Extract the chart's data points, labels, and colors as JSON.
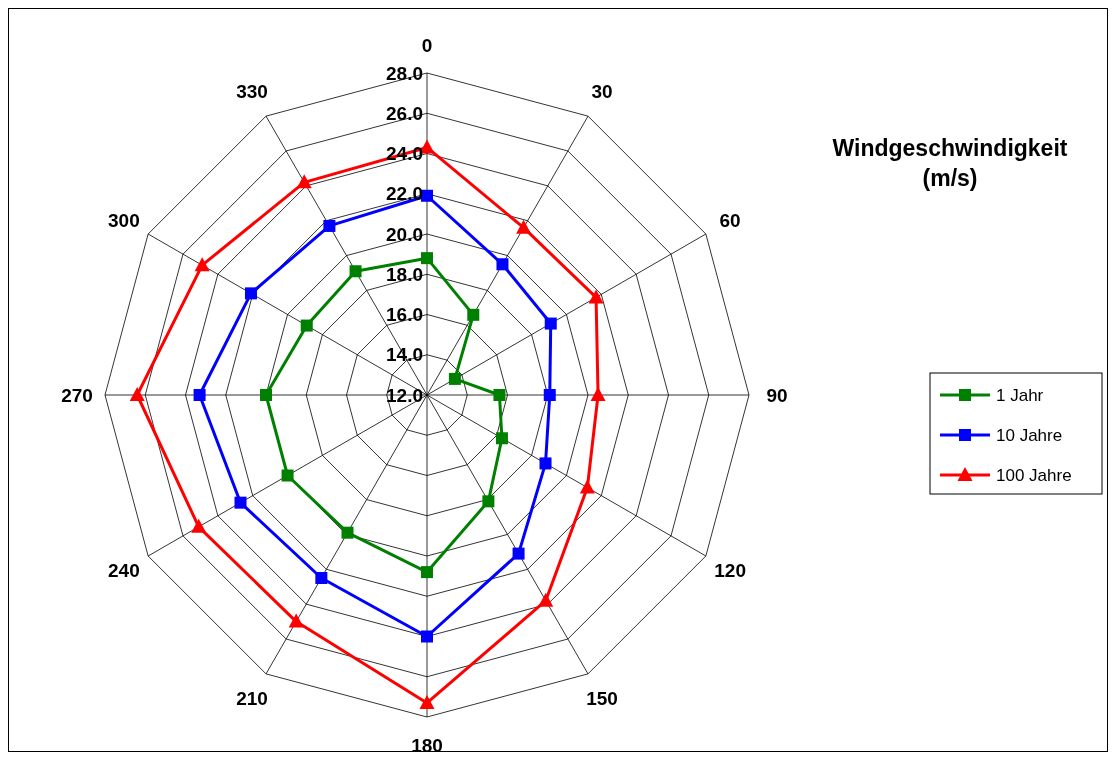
{
  "chart_data": {
    "type": "radar",
    "title": "Windgeschwindigkeit (m/s)",
    "categories": [
      "0",
      "30",
      "60",
      "90",
      "120",
      "150",
      "180",
      "210",
      "240",
      "270",
      "300",
      "330"
    ],
    "series": [
      {
        "name": "1 Jahr",
        "color": "#008000",
        "marker": "square",
        "values": [
          18.8,
          16.6,
          13.6,
          15.6,
          16.3,
          18.1,
          20.8,
          19.9,
          20.0,
          20.0,
          18.9,
          19.1
        ]
      },
      {
        "name": "10 Jahre",
        "color": "#0000ff",
        "marker": "square",
        "values": [
          21.9,
          19.5,
          19.1,
          18.1,
          18.8,
          21.1,
          24.0,
          22.5,
          22.7,
          23.3,
          22.1,
          21.7
        ]
      },
      {
        "name": "100 Jahre",
        "color": "#ff0000",
        "marker": "triangle",
        "values": [
          24.3,
          21.6,
          21.7,
          20.5,
          21.2,
          23.8,
          27.3,
          25.0,
          25.1,
          26.4,
          24.9,
          24.2
        ]
      }
    ],
    "ylim": [
      12,
      28
    ],
    "yticks": [
      {
        "value": 12,
        "label": "12.0"
      },
      {
        "value": 14,
        "label": "14.0"
      },
      {
        "value": 16,
        "label": "16.0"
      },
      {
        "value": 18,
        "label": "18.0"
      },
      {
        "value": 20,
        "label": "20.0"
      },
      {
        "value": 22,
        "label": "22.0"
      },
      {
        "value": 24,
        "label": "24.0"
      },
      {
        "value": 26,
        "label": "26.0"
      },
      {
        "value": 28,
        "label": "28.0"
      }
    ],
    "grid": true,
    "legend": "right"
  }
}
